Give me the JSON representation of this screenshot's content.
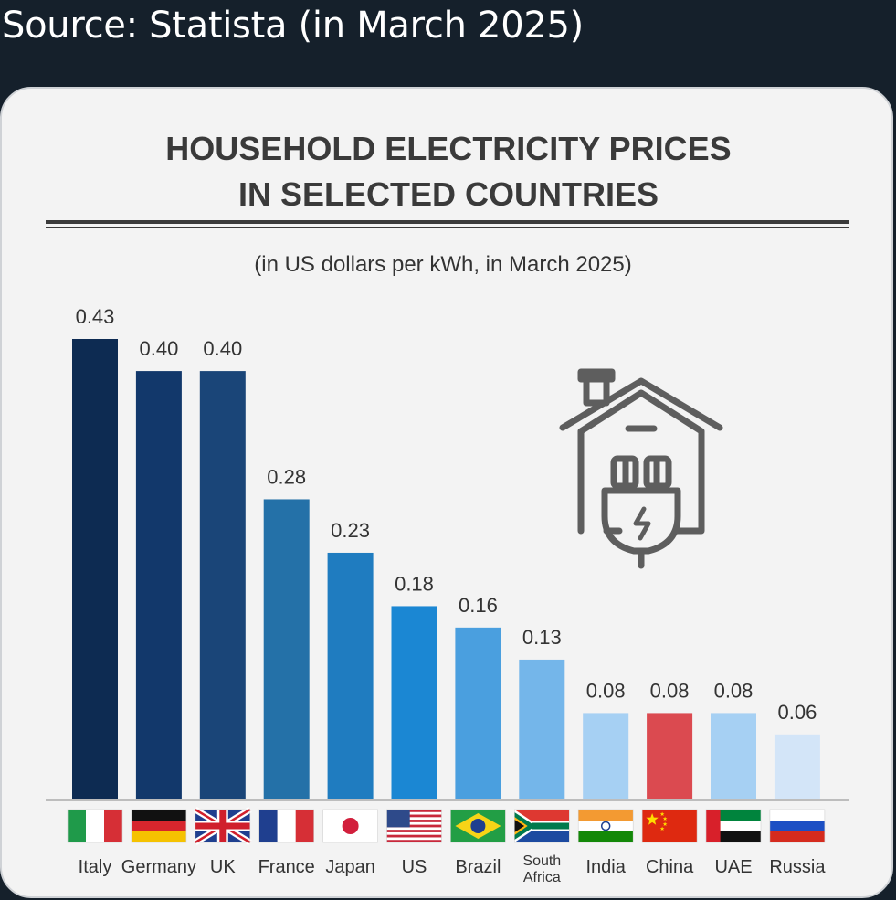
{
  "caption": "Source: Statista (in March 2025)",
  "chart_data": {
    "type": "bar",
    "title": [
      "HOUSEHOLD ELECTRICITY PRICES",
      "IN SELECTED COUNTRIES"
    ],
    "subtitle": "(in US dollars per kWh, in March 2025)",
    "categories": [
      "Italy",
      "Germany",
      "UK",
      "France",
      "Japan",
      "US",
      "Brazil",
      "South Africa",
      "India",
      "China",
      "UAE",
      "Russia"
    ],
    "category_lines": [
      [
        "Italy"
      ],
      [
        "Germany"
      ],
      [
        "UK"
      ],
      [
        "France"
      ],
      [
        "Japan"
      ],
      [
        "US"
      ],
      [
        "Brazil"
      ],
      [
        "South",
        "Africa"
      ],
      [
        "India"
      ],
      [
        "China"
      ],
      [
        "UAE"
      ],
      [
        "Russia"
      ]
    ],
    "values": [
      0.43,
      0.4,
      0.4,
      0.28,
      0.23,
      0.18,
      0.16,
      0.13,
      0.08,
      0.08,
      0.08,
      0.06
    ],
    "value_labels": [
      "0.43",
      "0.40",
      "0.40",
      "0.28",
      "0.23",
      "0.18",
      "0.16",
      "0.13",
      "0.08",
      "0.08",
      "0.08",
      "0.06"
    ],
    "bar_colors": [
      "#0d2b52",
      "#12386b",
      "#1a4578",
      "#2471a8",
      "#1f7cc0",
      "#1b87d3",
      "#4a9fdf",
      "#74b6ea",
      "#a6d0f3",
      "#db4a50",
      "#a6d0f3",
      "#d3e5f8"
    ],
    "value_label_colors": [
      "#333333",
      "#333333",
      "#333333",
      "#333333",
      "#333333",
      "#333333",
      "#333333",
      "#333333",
      "#333333",
      "#cc3d42",
      "#333333",
      "#333333"
    ],
    "ylim": [
      0,
      0.43
    ],
    "xlabel": "",
    "ylabel": "",
    "icon": "house-plug-icon"
  }
}
